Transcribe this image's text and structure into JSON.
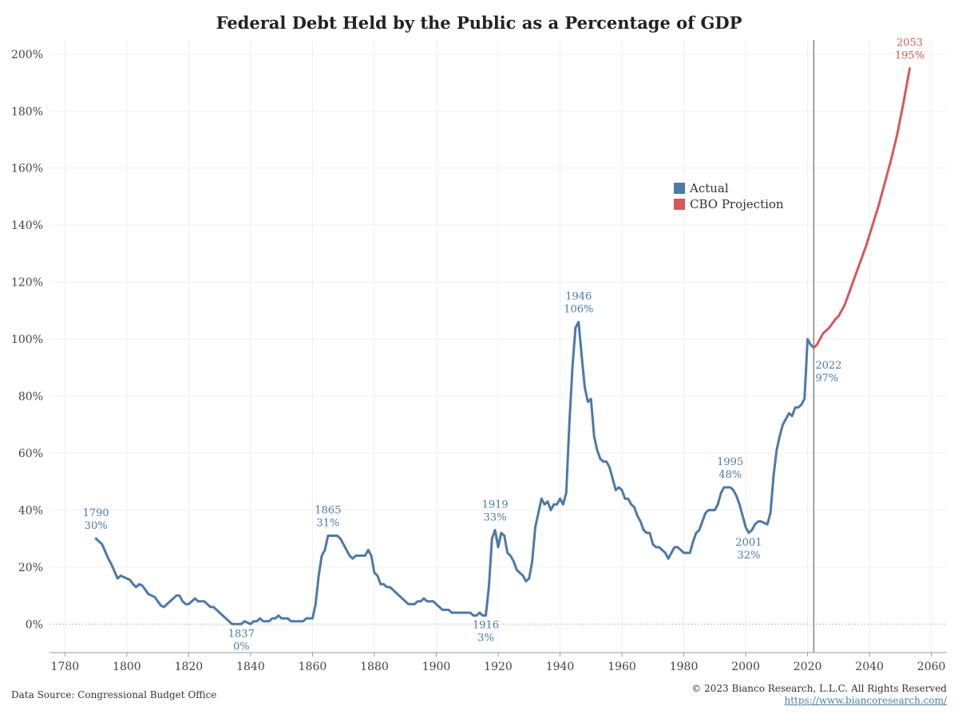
{
  "chart_data": {
    "type": "line",
    "title": "Federal Debt Held by the Public as a Percentage of GDP",
    "xlabel": "",
    "ylabel": "",
    "xlim": [
      1775,
      2065
    ],
    "ylim": [
      -10,
      205
    ],
    "x_ticks": [
      1780,
      1800,
      1820,
      1840,
      1860,
      1880,
      1900,
      1920,
      1940,
      1960,
      1980,
      2000,
      2020,
      2040,
      2060
    ],
    "y_ticks": [
      0,
      20,
      40,
      60,
      80,
      100,
      120,
      140,
      160,
      180,
      200
    ],
    "y_tick_labels": [
      "0%",
      "20%",
      "40%",
      "60%",
      "80%",
      "100%",
      "120%",
      "140%",
      "160%",
      "180%",
      "200%"
    ],
    "grid": true,
    "legend_position": "center-right",
    "reference_line_x": 2022,
    "series": [
      {
        "name": "Actual",
        "color": "#4e79a7",
        "points": [
          [
            1790,
            30
          ],
          [
            1792,
            28
          ],
          [
            1794,
            23
          ],
          [
            1795,
            21
          ],
          [
            1797,
            16
          ],
          [
            1798,
            17
          ],
          [
            1800,
            16
          ],
          [
            1801,
            15.5
          ],
          [
            1802,
            14
          ],
          [
            1803,
            13
          ],
          [
            1804,
            14
          ],
          [
            1805,
            13.5
          ],
          [
            1806,
            12
          ],
          [
            1807,
            10.5
          ],
          [
            1808,
            10
          ],
          [
            1809,
            9.5
          ],
          [
            1810,
            8
          ],
          [
            1811,
            6.5
          ],
          [
            1812,
            6
          ],
          [
            1813,
            7
          ],
          [
            1815,
            9
          ],
          [
            1816,
            10
          ],
          [
            1817,
            10
          ],
          [
            1818,
            8
          ],
          [
            1819,
            7
          ],
          [
            1820,
            7
          ],
          [
            1821,
            8
          ],
          [
            1822,
            9
          ],
          [
            1823,
            8
          ],
          [
            1825,
            8
          ],
          [
            1826,
            7
          ],
          [
            1827,
            6
          ],
          [
            1828,
            6
          ],
          [
            1830,
            4
          ],
          [
            1832,
            2
          ],
          [
            1834,
            0
          ],
          [
            1836,
            0
          ],
          [
            1837,
            0
          ],
          [
            1838,
            1
          ],
          [
            1839,
            0.5
          ],
          [
            1840,
            0
          ],
          [
            1841,
            1
          ],
          [
            1842,
            1
          ],
          [
            1843,
            2
          ],
          [
            1844,
            1
          ],
          [
            1846,
            1
          ],
          [
            1847,
            2
          ],
          [
            1848,
            2
          ],
          [
            1849,
            3
          ],
          [
            1850,
            2
          ],
          [
            1852,
            2
          ],
          [
            1853,
            1
          ],
          [
            1855,
            1
          ],
          [
            1857,
            1
          ],
          [
            1858,
            2
          ],
          [
            1859,
            2
          ],
          [
            1860,
            2
          ],
          [
            1861,
            7
          ],
          [
            1862,
            17
          ],
          [
            1863,
            24
          ],
          [
            1864,
            26
          ],
          [
            1865,
            31
          ],
          [
            1866,
            31
          ],
          [
            1867,
            31
          ],
          [
            1868,
            31
          ],
          [
            1869,
            30
          ],
          [
            1870,
            28
          ],
          [
            1871,
            26
          ],
          [
            1872,
            24
          ],
          [
            1873,
            23
          ],
          [
            1874,
            24
          ],
          [
            1875,
            24
          ],
          [
            1876,
            24
          ],
          [
            1877,
            24
          ],
          [
            1878,
            26
          ],
          [
            1879,
            24
          ],
          [
            1880,
            18
          ],
          [
            1881,
            17
          ],
          [
            1882,
            14
          ],
          [
            1883,
            14
          ],
          [
            1884,
            13
          ],
          [
            1885,
            13
          ],
          [
            1886,
            12
          ],
          [
            1888,
            10
          ],
          [
            1890,
            8
          ],
          [
            1891,
            7
          ],
          [
            1892,
            7
          ],
          [
            1893,
            7
          ],
          [
            1894,
            8
          ],
          [
            1895,
            8
          ],
          [
            1896,
            9
          ],
          [
            1897,
            8
          ],
          [
            1899,
            8
          ],
          [
            1900,
            7
          ],
          [
            1902,
            5
          ],
          [
            1904,
            5
          ],
          [
            1905,
            4
          ],
          [
            1907,
            4
          ],
          [
            1909,
            4
          ],
          [
            1911,
            4
          ],
          [
            1912,
            3
          ],
          [
            1913,
            3
          ],
          [
            1914,
            4
          ],
          [
            1915,
            3
          ],
          [
            1916,
            3
          ],
          [
            1917,
            13
          ],
          [
            1918,
            30
          ],
          [
            1919,
            33
          ],
          [
            1920,
            27
          ],
          [
            1921,
            32
          ],
          [
            1922,
            31
          ],
          [
            1923,
            25
          ],
          [
            1924,
            24
          ],
          [
            1925,
            22
          ],
          [
            1926,
            19
          ],
          [
            1927,
            18
          ],
          [
            1928,
            17
          ],
          [
            1929,
            15
          ],
          [
            1930,
            16
          ],
          [
            1931,
            22
          ],
          [
            1932,
            34
          ],
          [
            1933,
            39
          ],
          [
            1934,
            44
          ],
          [
            1935,
            42
          ],
          [
            1936,
            43
          ],
          [
            1937,
            40
          ],
          [
            1938,
            42
          ],
          [
            1939,
            42
          ],
          [
            1940,
            44
          ],
          [
            1941,
            42
          ],
          [
            1942,
            46
          ],
          [
            1943,
            70
          ],
          [
            1944,
            90
          ],
          [
            1945,
            104
          ],
          [
            1946,
            106
          ],
          [
            1947,
            94
          ],
          [
            1948,
            83
          ],
          [
            1949,
            78
          ],
          [
            1950,
            79
          ],
          [
            1951,
            66
          ],
          [
            1952,
            61
          ],
          [
            1953,
            58
          ],
          [
            1954,
            57
          ],
          [
            1955,
            57
          ],
          [
            1956,
            55
          ],
          [
            1957,
            51
          ],
          [
            1958,
            47
          ],
          [
            1959,
            48
          ],
          [
            1960,
            47
          ],
          [
            1961,
            44
          ],
          [
            1962,
            44
          ],
          [
            1963,
            42
          ],
          [
            1964,
            41
          ],
          [
            1965,
            38
          ],
          [
            1966,
            36
          ],
          [
            1967,
            33
          ],
          [
            1968,
            32
          ],
          [
            1969,
            32
          ],
          [
            1970,
            28
          ],
          [
            1971,
            27
          ],
          [
            1972,
            27
          ],
          [
            1973,
            26
          ],
          [
            1974,
            25
          ],
          [
            1975,
            23
          ],
          [
            1976,
            25
          ],
          [
            1977,
            27
          ],
          [
            1978,
            27
          ],
          [
            1979,
            26
          ],
          [
            1980,
            25
          ],
          [
            1981,
            25
          ],
          [
            1982,
            25
          ],
          [
            1983,
            29
          ],
          [
            1984,
            32
          ],
          [
            1985,
            33
          ],
          [
            1986,
            36
          ],
          [
            1987,
            39
          ],
          [
            1988,
            40
          ],
          [
            1989,
            40
          ],
          [
            1990,
            40
          ],
          [
            1991,
            42
          ],
          [
            1992,
            46
          ],
          [
            1993,
            48
          ],
          [
            1994,
            48
          ],
          [
            1995,
            48
          ],
          [
            1996,
            47
          ],
          [
            1997,
            45
          ],
          [
            1998,
            42
          ],
          [
            1999,
            38
          ],
          [
            2000,
            34
          ],
          [
            2001,
            32
          ],
          [
            2002,
            33
          ],
          [
            2003,
            35
          ],
          [
            2004,
            36
          ],
          [
            2005,
            36
          ],
          [
            2006,
            35.5
          ],
          [
            2007,
            35
          ],
          [
            2008,
            39
          ],
          [
            2009,
            52
          ],
          [
            2010,
            61
          ],
          [
            2011,
            66
          ],
          [
            2012,
            70
          ],
          [
            2013,
            72
          ],
          [
            2014,
            74
          ],
          [
            2015,
            73
          ],
          [
            2016,
            76
          ],
          [
            2017,
            76
          ],
          [
            2018,
            77
          ],
          [
            2019,
            79
          ],
          [
            2020,
            100
          ],
          [
            2021,
            98
          ],
          [
            2022,
            97
          ]
        ]
      },
      {
        "name": "CBO Projection",
        "color": "#d9575a",
        "points": [
          [
            2022,
            97
          ],
          [
            2023,
            98
          ],
          [
            2024,
            100
          ],
          [
            2025,
            102
          ],
          [
            2027,
            104
          ],
          [
            2029,
            107
          ],
          [
            2030,
            108
          ],
          [
            2032,
            112
          ],
          [
            2033,
            115
          ],
          [
            2035,
            121
          ],
          [
            2037,
            127
          ],
          [
            2039,
            133
          ],
          [
            2041,
            140
          ],
          [
            2043,
            147
          ],
          [
            2045,
            155
          ],
          [
            2047,
            163
          ],
          [
            2049,
            172
          ],
          [
            2051,
            183
          ],
          [
            2053,
            195
          ]
        ]
      }
    ],
    "annotations": [
      {
        "year": "1790",
        "value": "30%",
        "x": 1790,
        "y": 30,
        "color": "#4e79a7",
        "side": "above"
      },
      {
        "year": "1837",
        "value": "0%",
        "x": 1837,
        "y": 0,
        "color": "#4e79a7",
        "side": "below"
      },
      {
        "year": "1865",
        "value": "31%",
        "x": 1865,
        "y": 31,
        "color": "#4e79a7",
        "side": "above"
      },
      {
        "year": "1916",
        "value": "3%",
        "x": 1916,
        "y": 3,
        "color": "#4e79a7",
        "side": "below"
      },
      {
        "year": "1919",
        "value": "33%",
        "x": 1919,
        "y": 33,
        "color": "#4e79a7",
        "side": "above"
      },
      {
        "year": "1946",
        "value": "106%",
        "x": 1946,
        "y": 106,
        "color": "#4e79a7",
        "side": "above"
      },
      {
        "year": "1995",
        "value": "48%",
        "x": 1995,
        "y": 48,
        "color": "#4e79a7",
        "side": "above"
      },
      {
        "year": "2001",
        "value": "32%",
        "x": 2001,
        "y": 32,
        "color": "#4e79a7",
        "side": "below"
      },
      {
        "year": "2022",
        "value": "97%",
        "x": 2022,
        "y": 97,
        "color": "#4e79a7",
        "side": "below-right"
      },
      {
        "year": "2053",
        "value": "195%",
        "x": 2053,
        "y": 195,
        "color": "#d9575a",
        "side": "above"
      }
    ]
  },
  "legend": {
    "items": [
      {
        "label": "Actual",
        "color": "#4e79a7"
      },
      {
        "label": "CBO Projection",
        "color": "#d9575a"
      }
    ]
  },
  "footer": {
    "source": "Data Source: Congressional Budget Office",
    "copyright": "© 2023 Bianco Research, L.L.C. All Rights Reserved",
    "link": "https://www.biancoresearch.com/"
  }
}
